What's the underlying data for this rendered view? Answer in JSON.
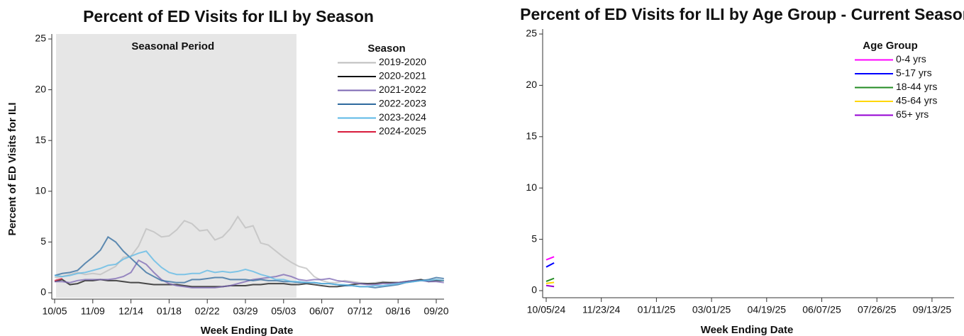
{
  "chart_data": [
    {
      "type": "line",
      "title": "Percent of ED Visits for ILI by Season",
      "x_label": "Week Ending Date",
      "y_label": "Percent of ED Visits for ILI",
      "categories": [
        "10/05",
        null,
        null,
        null,
        null,
        "11/09",
        null,
        null,
        null,
        null,
        "12/14",
        null,
        null,
        null,
        null,
        "01/18",
        null,
        null,
        null,
        null,
        "02/22",
        null,
        null,
        null,
        null,
        "03/29",
        null,
        null,
        null,
        null,
        "05/03",
        null,
        null,
        null,
        null,
        "06/07",
        null,
        null,
        null,
        null,
        "07/12",
        null,
        null,
        null,
        null,
        "08/16",
        null,
        null,
        null,
        null,
        "09/20",
        null
      ],
      "seasonal_period": {
        "label": "Seasonal Period",
        "weeks": [
          0,
          31
        ]
      },
      "ylim": [
        0,
        25
      ],
      "yticks": [
        0,
        5,
        10,
        15,
        20,
        25
      ],
      "legend_title": "Season",
      "legend": "top-right",
      "series": [
        {
          "name": "2019-2020",
          "color": "#bdbdbd",
          "values": [
            1.5,
            1.6,
            1.8,
            2.0,
            1.8,
            1.9,
            1.8,
            2.2,
            2.6,
            3.5,
            3.6,
            4.6,
            6.3,
            6.0,
            5.5,
            5.6,
            6.2,
            7.1,
            6.8,
            6.1,
            6.2,
            5.2,
            5.5,
            6.3,
            7.5,
            6.4,
            6.6,
            4.9,
            4.7,
            4.1,
            3.5,
            3.0,
            2.6,
            2.4,
            1.6,
            1.2,
            1.0,
            1.0,
            1.2,
            1.1,
            1.0,
            0.9,
            1.0,
            1.1,
            1.0,
            1.0,
            1.1,
            1.2,
            1.3,
            1.2,
            1.3,
            1.2
          ]
        },
        {
          "name": "2020-2021",
          "color": "#111111",
          "values": [
            1.1,
            1.3,
            0.8,
            0.9,
            1.2,
            1.2,
            1.3,
            1.2,
            1.2,
            1.1,
            1.0,
            1.0,
            0.9,
            0.8,
            0.8,
            0.8,
            0.8,
            0.7,
            0.6,
            0.6,
            0.6,
            0.6,
            0.6,
            0.7,
            0.7,
            0.7,
            0.8,
            0.8,
            0.9,
            0.9,
            0.9,
            0.8,
            0.8,
            0.9,
            0.8,
            0.7,
            0.6,
            0.6,
            0.7,
            0.8,
            0.9,
            0.9,
            0.9,
            1.0,
            1.0,
            1.0,
            1.1,
            1.2,
            1.3,
            1.1,
            1.2,
            1.2
          ]
        },
        {
          "name": "2021-2022",
          "color": "#7b66b3",
          "values": [
            1.1,
            1.1,
            1.0,
            1.2,
            1.3,
            1.3,
            1.3,
            1.3,
            1.4,
            1.6,
            2.0,
            3.2,
            2.8,
            2.0,
            1.3,
            0.9,
            0.7,
            0.6,
            0.5,
            0.5,
            0.5,
            0.5,
            0.6,
            0.7,
            0.9,
            1.1,
            1.3,
            1.4,
            1.5,
            1.6,
            1.8,
            1.6,
            1.3,
            1.2,
            1.3,
            1.3,
            1.4,
            1.2,
            1.1,
            1.0,
            0.9,
            0.8,
            0.8,
            0.9,
            0.9,
            1.0,
            1.1,
            1.2,
            1.2,
            1.1,
            1.1,
            1.0
          ]
        },
        {
          "name": "2022-2023",
          "color": "#2e6a9e",
          "values": [
            1.7,
            1.9,
            2.0,
            2.2,
            2.9,
            3.5,
            4.2,
            5.5,
            5.0,
            4.1,
            3.4,
            2.7,
            2.0,
            1.6,
            1.2,
            1.1,
            1.0,
            1.0,
            1.3,
            1.3,
            1.4,
            1.5,
            1.5,
            1.3,
            1.3,
            1.3,
            1.2,
            1.3,
            1.2,
            1.2,
            1.1,
            1.1,
            1.0,
            1.0,
            1.0,
            0.9,
            0.9,
            0.8,
            0.7,
            0.7,
            0.6,
            0.6,
            0.5,
            0.6,
            0.7,
            0.8,
            1.0,
            1.1,
            1.2,
            1.3,
            1.5,
            1.4
          ]
        },
        {
          "name": "2023-2024",
          "color": "#5bb8e6",
          "values": [
            1.7,
            1.6,
            1.7,
            1.9,
            2.0,
            2.2,
            2.4,
            2.7,
            2.8,
            3.3,
            3.6,
            3.9,
            4.1,
            3.2,
            2.5,
            2.0,
            1.8,
            1.8,
            1.9,
            1.9,
            2.2,
            2.0,
            2.1,
            2.0,
            2.1,
            2.3,
            2.1,
            1.8,
            1.6,
            1.3,
            1.3,
            1.1,
            1.1,
            1.0,
            1.0,
            0.9,
            0.9,
            0.8,
            0.8,
            0.7,
            0.6,
            0.6,
            0.7,
            0.7,
            0.8,
            0.9,
            1.0,
            1.1,
            1.2,
            1.2,
            1.3,
            1.2
          ]
        },
        {
          "name": "2024-2025",
          "color": "#d81b3c",
          "values": [
            1.2,
            1.4,
            null,
            null,
            null,
            null,
            null,
            null,
            null,
            null,
            null,
            null,
            null,
            null,
            null,
            null,
            null,
            null,
            null,
            null,
            null,
            null,
            null,
            null,
            null,
            null,
            null,
            null,
            null,
            null,
            null,
            null,
            null,
            null,
            null,
            null,
            null,
            null,
            null,
            null,
            null,
            null,
            null,
            null,
            null,
            null,
            null,
            null,
            null,
            null,
            null,
            null
          ]
        }
      ]
    },
    {
      "type": "line",
      "title": "Percent of ED Visits for ILI by Age Group - Current Season",
      "x_label": "Week Ending Date",
      "categories": [
        "10/05/24",
        null,
        null,
        null,
        null,
        null,
        null,
        "11/23/24",
        null,
        null,
        null,
        null,
        null,
        null,
        "01/11/25",
        null,
        null,
        null,
        null,
        null,
        null,
        "03/01/25",
        null,
        null,
        null,
        null,
        null,
        null,
        "04/19/25",
        null,
        null,
        null,
        null,
        null,
        null,
        "06/07/25",
        null,
        null,
        null,
        null,
        null,
        null,
        "07/26/25",
        null,
        null,
        null,
        null,
        null,
        null,
        "09/13/25",
        null,
        null
      ],
      "ylim": [
        0,
        25
      ],
      "yticks": [
        0,
        5,
        10,
        15,
        20,
        25
      ],
      "legend_title": "Age Group",
      "legend": "top-right",
      "series": [
        {
          "name": "0-4 yrs",
          "color": "#ff00ff",
          "values": [
            3.0,
            3.3,
            null,
            null,
            null,
            null,
            null,
            null,
            null,
            null,
            null,
            null,
            null,
            null,
            null,
            null,
            null,
            null,
            null,
            null,
            null,
            null,
            null,
            null,
            null,
            null,
            null,
            null,
            null,
            null,
            null,
            null,
            null,
            null,
            null,
            null,
            null,
            null,
            null,
            null,
            null,
            null,
            null,
            null,
            null,
            null,
            null,
            null,
            null,
            null,
            null,
            null
          ]
        },
        {
          "name": "5-17 yrs",
          "color": "#0000ff",
          "values": [
            2.3,
            2.7,
            null,
            null,
            null,
            null,
            null,
            null,
            null,
            null,
            null,
            null,
            null,
            null,
            null,
            null,
            null,
            null,
            null,
            null,
            null,
            null,
            null,
            null,
            null,
            null,
            null,
            null,
            null,
            null,
            null,
            null,
            null,
            null,
            null,
            null,
            null,
            null,
            null,
            null,
            null,
            null,
            null,
            null,
            null,
            null,
            null,
            null,
            null,
            null,
            null,
            null
          ]
        },
        {
          "name": "18-44 yrs",
          "color": "#228b22",
          "values": [
            0.9,
            1.2,
            null,
            null,
            null,
            null,
            null,
            null,
            null,
            null,
            null,
            null,
            null,
            null,
            null,
            null,
            null,
            null,
            null,
            null,
            null,
            null,
            null,
            null,
            null,
            null,
            null,
            null,
            null,
            null,
            null,
            null,
            null,
            null,
            null,
            null,
            null,
            null,
            null,
            null,
            null,
            null,
            null,
            null,
            null,
            null,
            null,
            null,
            null,
            null,
            null,
            null
          ]
        },
        {
          "name": "45-64 yrs",
          "color": "#ffd700",
          "values": [
            0.7,
            0.8,
            null,
            null,
            null,
            null,
            null,
            null,
            null,
            null,
            null,
            null,
            null,
            null,
            null,
            null,
            null,
            null,
            null,
            null,
            null,
            null,
            null,
            null,
            null,
            null,
            null,
            null,
            null,
            null,
            null,
            null,
            null,
            null,
            null,
            null,
            null,
            null,
            null,
            null,
            null,
            null,
            null,
            null,
            null,
            null,
            null,
            null,
            null,
            null,
            null,
            null
          ]
        },
        {
          "name": "65+ yrs",
          "color": "#9400d3",
          "values": [
            0.5,
            0.4,
            null,
            null,
            null,
            null,
            null,
            null,
            null,
            null,
            null,
            null,
            null,
            null,
            null,
            null,
            null,
            null,
            null,
            null,
            null,
            null,
            null,
            null,
            null,
            null,
            null,
            null,
            null,
            null,
            null,
            null,
            null,
            null,
            null,
            null,
            null,
            null,
            null,
            null,
            null,
            null,
            null,
            null,
            null,
            null,
            null,
            null,
            null,
            null,
            null,
            null
          ]
        }
      ]
    }
  ]
}
